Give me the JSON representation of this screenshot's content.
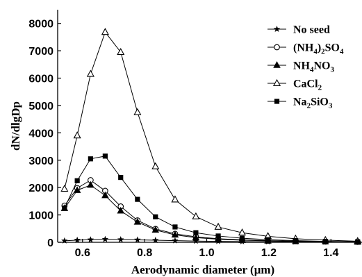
{
  "chart_data": {
    "type": "line",
    "xlabel": "Aerodynamic diameter (μm)",
    "ylabel": "dN/dlgDp",
    "xlim": [
      0.52,
      1.5
    ],
    "ylim": [
      0,
      8500
    ],
    "xticks": [
      0.6,
      0.8,
      1.0,
      1.2,
      1.4
    ],
    "xtick_labels": [
      "0.6",
      "0.8",
      "1.0",
      "1.2",
      "1.4"
    ],
    "yticks": [
      0,
      1000,
      2000,
      3000,
      4000,
      5000,
      6000,
      7000,
      8000
    ],
    "ytick_labels": [
      "0",
      "1000",
      "2000",
      "3000",
      "4000",
      "5000",
      "6000",
      "7000",
      "8000"
    ],
    "grid": false,
    "legend_position": "top-right",
    "x": [
      0.542,
      0.583,
      0.626,
      0.673,
      0.723,
      0.777,
      0.835,
      0.898,
      0.965,
      1.037,
      1.114,
      1.197,
      1.286,
      1.382,
      1.486
    ],
    "series": [
      {
        "name": "No seed",
        "marker": "star",
        "values": [
          55,
          80,
          95,
          110,
          100,
          90,
          75,
          60,
          45,
          35,
          25,
          20,
          15,
          10,
          5
        ]
      },
      {
        "name": "(NH4)2SO4",
        "name_parts": {
          "pre": "(NH",
          "sub1": "4",
          "mid": ")",
          "sub2": "2",
          "post": "SO",
          "sub3": "4"
        },
        "marker": "open-circle",
        "values": [
          1340,
          1980,
          2270,
          1880,
          1310,
          800,
          490,
          310,
          200,
          130,
          90,
          60,
          40,
          25,
          15
        ]
      },
      {
        "name": "NH4NO3",
        "name_parts": {
          "pre": "NH",
          "sub1": "4",
          "mid": "NO",
          "sub2": "3"
        },
        "marker": "filled-triangle",
        "values": [
          1240,
          1900,
          2090,
          1710,
          1150,
          740,
          450,
          270,
          170,
          110,
          75,
          50,
          30,
          20,
          10
        ]
      },
      {
        "name": "CaCl2",
        "name_parts": {
          "pre": "CaCl",
          "sub1": "2"
        },
        "marker": "open-triangle",
        "values": [
          1950,
          3900,
          6150,
          7680,
          6950,
          4750,
          2770,
          1560,
          940,
          560,
          350,
          220,
          130,
          80,
          40
        ]
      },
      {
        "name": "Na2SiO3",
        "name_parts": {
          "pre": "Na",
          "sub1": "2",
          "mid": "SiO",
          "sub2": "3"
        },
        "marker": "filled-square",
        "values": [
          1250,
          2250,
          3050,
          3150,
          2370,
          1570,
          930,
          560,
          350,
          230,
          150,
          95,
          60,
          35,
          20
        ]
      }
    ]
  }
}
